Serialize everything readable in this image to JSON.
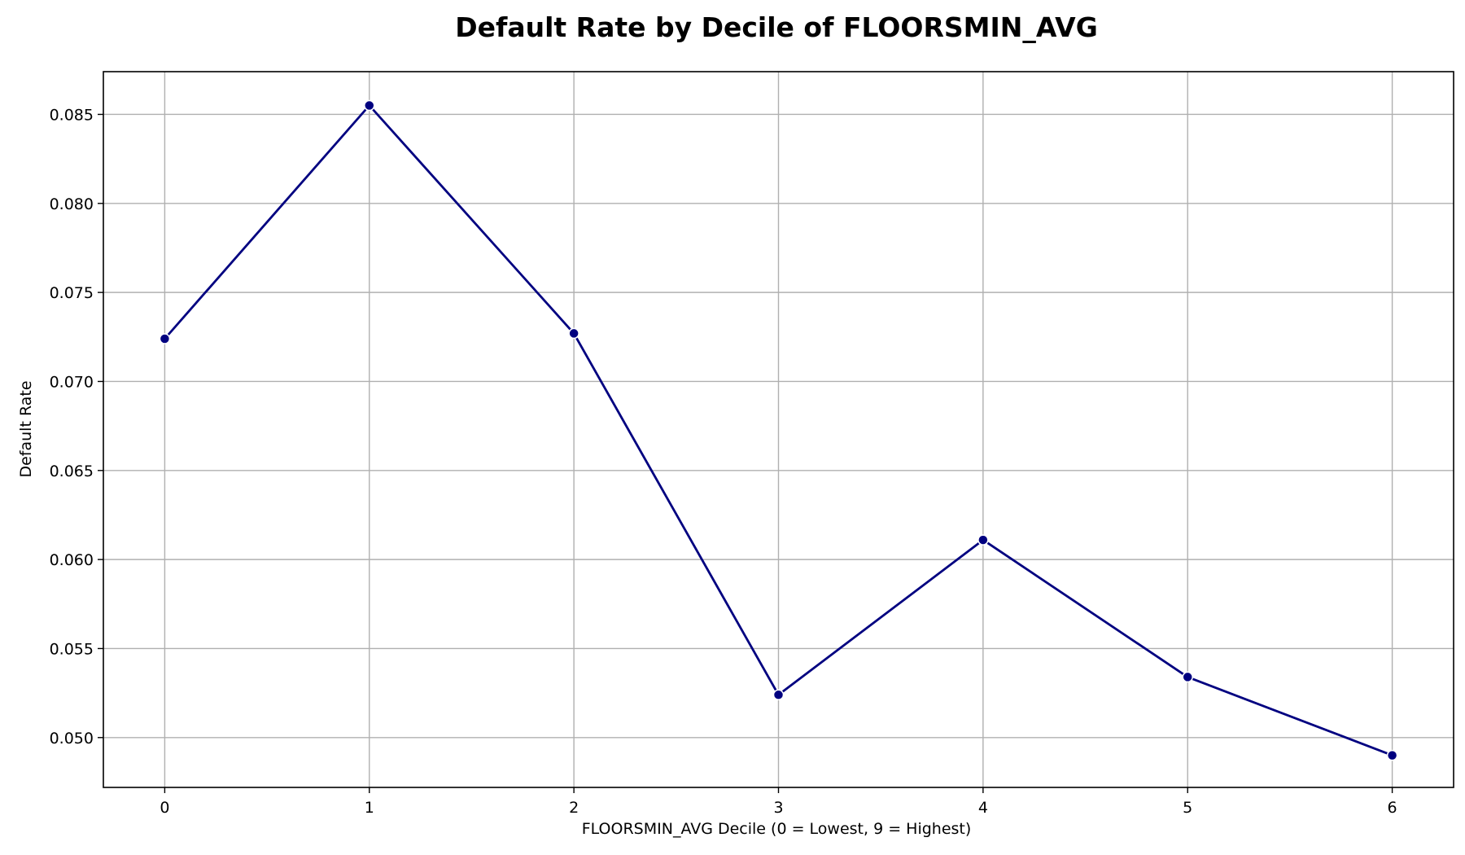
{
  "chart_data": {
    "type": "line",
    "title": "Default Rate by Decile of FLOORSMIN_AVG",
    "xlabel": "FLOORSMIN_AVG Decile (0 = Lowest, 9 = Highest)",
    "ylabel": "Default Rate",
    "x": [
      0,
      1,
      2,
      3,
      4,
      5,
      6
    ],
    "x_tick_labels": [
      "0",
      "1",
      "2",
      "3",
      "4",
      "5",
      "6"
    ],
    "y_ticks": [
      0.05,
      0.055,
      0.06,
      0.065,
      0.07,
      0.075,
      0.08,
      0.085
    ],
    "y_tick_labels": [
      "0.050",
      "0.055",
      "0.060",
      "0.065",
      "0.070",
      "0.075",
      "0.080",
      "0.085"
    ],
    "xlim": [
      -0.3,
      6.3
    ],
    "ylim": [
      0.0472,
      0.0874
    ],
    "grid": true,
    "series": [
      {
        "values": [
          0.0724,
          0.0855,
          0.0727,
          0.0524,
          0.0611,
          0.0534,
          0.049
        ],
        "color": "#000080"
      }
    ]
  }
}
